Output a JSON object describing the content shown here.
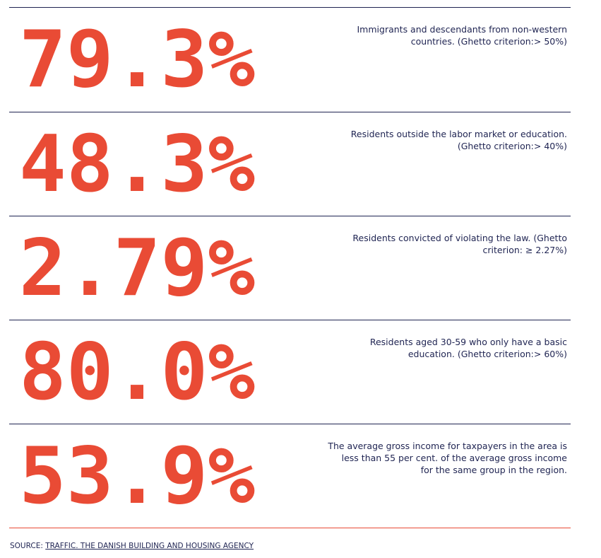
{
  "colors": {
    "accent": "#e94b35",
    "text": "#1f2452"
  },
  "stats": [
    {
      "value": "79.3%",
      "description": "Immigrants and descendants from non-western countries. (Ghetto criterion:> 50%)"
    },
    {
      "value": "48.3%",
      "description": "Residents outside the labor market or education. (Ghetto criterion:> 40%)"
    },
    {
      "value": "2.79%",
      "description": "Residents convicted of violating the law. (Ghetto criterion: ≥ 2.27%)"
    },
    {
      "value": "80.0%",
      "description": "Residents aged 30-59 who only have a basic education. (Ghetto criterion:> 60%)"
    },
    {
      "value": "53.9%",
      "description": "The average gross income for taxpayers in the area is less than 55 per cent. of the average gross income for the same group in the region."
    }
  ],
  "source": {
    "label": "SOURCE:",
    "link_text": "TRAFFIC. THE DANISH BUILDING AND HOUSING AGENCY"
  }
}
